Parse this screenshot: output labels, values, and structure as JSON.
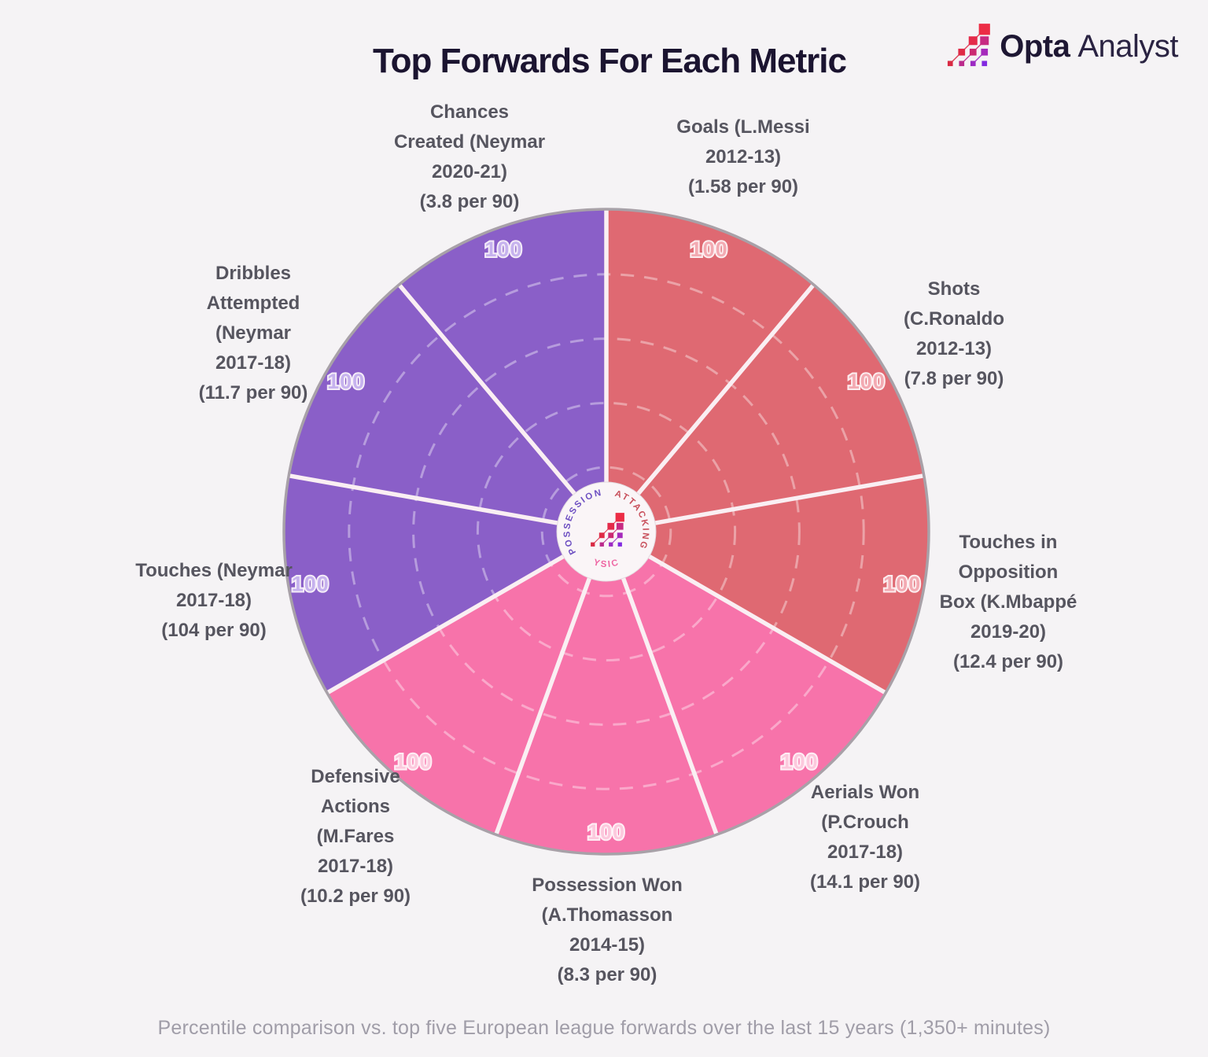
{
  "title": "Top Forwards For Each Metric",
  "brand": {
    "name_bold": "Opta",
    "name_light": "Analyst",
    "logo_squares": [
      [
        "#ec2c45"
      ],
      [
        "#e42b4a",
        "#c72a82"
      ],
      [
        "#df2a46",
        "#cb2a72",
        "#a52abb"
      ],
      [
        "#d92a43",
        "#bb2a8c",
        "#9c2ac3",
        "#822ae0"
      ]
    ]
  },
  "caption": "Percentile comparison vs. top five European league forwards over the last 15 years (1,350+ minutes)",
  "chart_data": {
    "type": "pie",
    "subtype": "percentile-pizza-radar",
    "start_angle_deg": 0,
    "slice_angle_deg": 40,
    "max_value": 100,
    "ring_values": [
      20,
      40,
      60,
      80
    ],
    "grid": "dashed-concentric",
    "legend_position": "center-badge",
    "background": "#f5f3f5",
    "outer_ring_color": "#a8a1a8",
    "divider_color": "#faeff3",
    "center_badge_color": "#faf5f7",
    "categories": {
      "attacking": {
        "label": "ATTACKING",
        "color": "#df6972",
        "value_label_color": "#f3aab2",
        "badge_text_color": "#c8505c"
      },
      "physical": {
        "label": "PHYSICAL",
        "color": "#f773aa",
        "value_label_color": "#fcc9dd",
        "badge_text_color": "#ee66a3"
      },
      "possession": {
        "label": "POSSESSION",
        "color": "#8a5fc8",
        "value_label_color": "#c6b2ee",
        "badge_text_color": "#6e50c2"
      }
    },
    "series": [
      {
        "metric": "Goals",
        "holder": "L.Messi",
        "season": "2012-13",
        "rate": "1.58 per 90",
        "value": 100,
        "category": "attacking",
        "label": "Goals (L.Messi\n2012-13)\n(1.58 per 90)"
      },
      {
        "metric": "Shots",
        "holder": "C.Ronaldo",
        "season": "2012-13",
        "rate": "7.8 per 90",
        "value": 100,
        "category": "attacking",
        "label": "Shots\n(C.Ronaldo\n2012-13)\n(7.8 per 90)"
      },
      {
        "metric": "Touches in Opposition Box",
        "holder": "K.Mbappé",
        "season": "2019-20",
        "rate": "12.4 per 90",
        "value": 100,
        "category": "attacking",
        "label": "Touches in\nOpposition\nBox (K.Mbappé\n2019-20)\n(12.4 per 90)"
      },
      {
        "metric": "Aerials Won",
        "holder": "P.Crouch",
        "season": "2017-18",
        "rate": "14.1 per 90",
        "value": 100,
        "category": "physical",
        "label": "Aerials Won\n(P.Crouch\n2017-18)\n(14.1 per 90)"
      },
      {
        "metric": "Possession Won",
        "holder": "A.Thomasson",
        "season": "2014-15",
        "rate": "8.3 per 90",
        "value": 100,
        "category": "physical",
        "label": "Possession Won\n(A.Thomasson\n2014-15)\n(8.3 per 90)"
      },
      {
        "metric": "Defensive Actions",
        "holder": "M.Fares",
        "season": "2017-18",
        "rate": "10.2 per 90",
        "value": 100,
        "category": "physical",
        "label": "Defensive\nActions\n(M.Fares\n2017-18)\n(10.2 per 90)"
      },
      {
        "metric": "Touches",
        "holder": "Neymar",
        "season": "2017-18",
        "rate": "104 per 90",
        "value": 100,
        "category": "possession",
        "label": "Touches (Neymar\n2017-18)\n(104 per 90)"
      },
      {
        "metric": "Dribbles Attempted",
        "holder": "Neymar",
        "season": "2017-18",
        "rate": "11.7 per 90",
        "value": 100,
        "category": "possession",
        "label": "Dribbles\nAttempted\n(Neymar\n2017-18)\n(11.7 per 90)"
      },
      {
        "metric": "Chances Created",
        "holder": "Neymar",
        "season": "2020-21",
        "rate": "3.8 per 90",
        "value": 100,
        "category": "possession",
        "label": "Chances\nCreated (Neymar\n2020-21)\n(3.8 per 90)"
      }
    ]
  }
}
